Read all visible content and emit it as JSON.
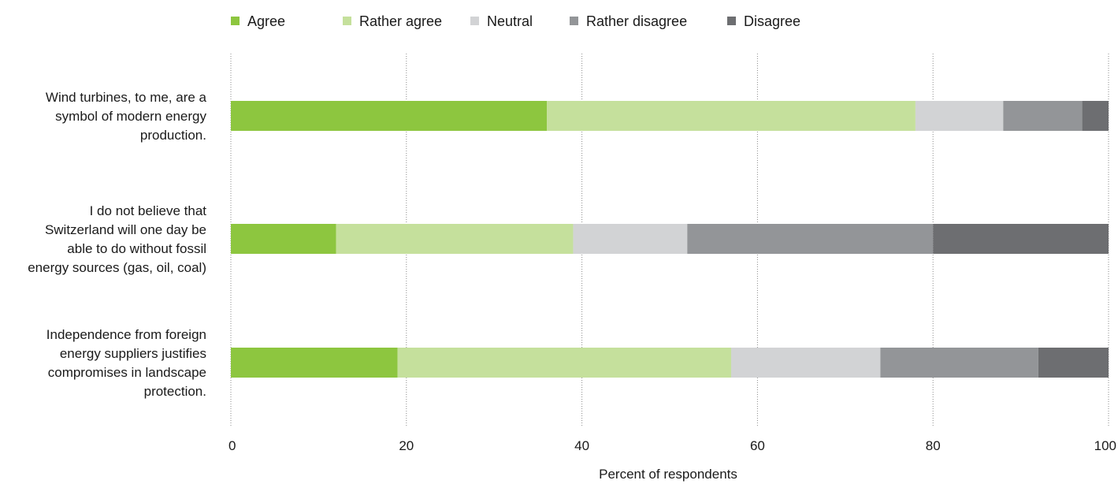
{
  "chart_data": {
    "type": "bar",
    "orientation": "horizontal",
    "stacked": true,
    "xlabel": "Percent of respondents",
    "xlim": [
      0,
      100
    ],
    "xticks": [
      0,
      20,
      40,
      60,
      80,
      100
    ],
    "grid": true,
    "legend_position": "top",
    "categories": [
      [
        "Wind turbines, to me, are a",
        "symbol of modern energy",
        "production."
      ],
      [
        "I do not believe that",
        "Switzerland will one day be",
        "able to do without fossil",
        "energy sources (gas, oil, coal)"
      ],
      [
        "Independence from foreign",
        "energy suppliers justifies",
        "compromises in landscape",
        "protection."
      ]
    ],
    "series": [
      {
        "name": "Agree",
        "color": "#8dc63f",
        "values": [
          36,
          12,
          19
        ]
      },
      {
        "name": "Rather agree",
        "color": "#c5e09c",
        "values": [
          42,
          27,
          38
        ]
      },
      {
        "name": "Neutral",
        "color": "#d2d3d5",
        "values": [
          10,
          13,
          17
        ]
      },
      {
        "name": "Rather disagree",
        "color": "#939598",
        "values": [
          9,
          28,
          18
        ]
      },
      {
        "name": "Disagree",
        "color": "#6d6e71",
        "values": [
          3,
          20,
          8
        ]
      }
    ]
  }
}
